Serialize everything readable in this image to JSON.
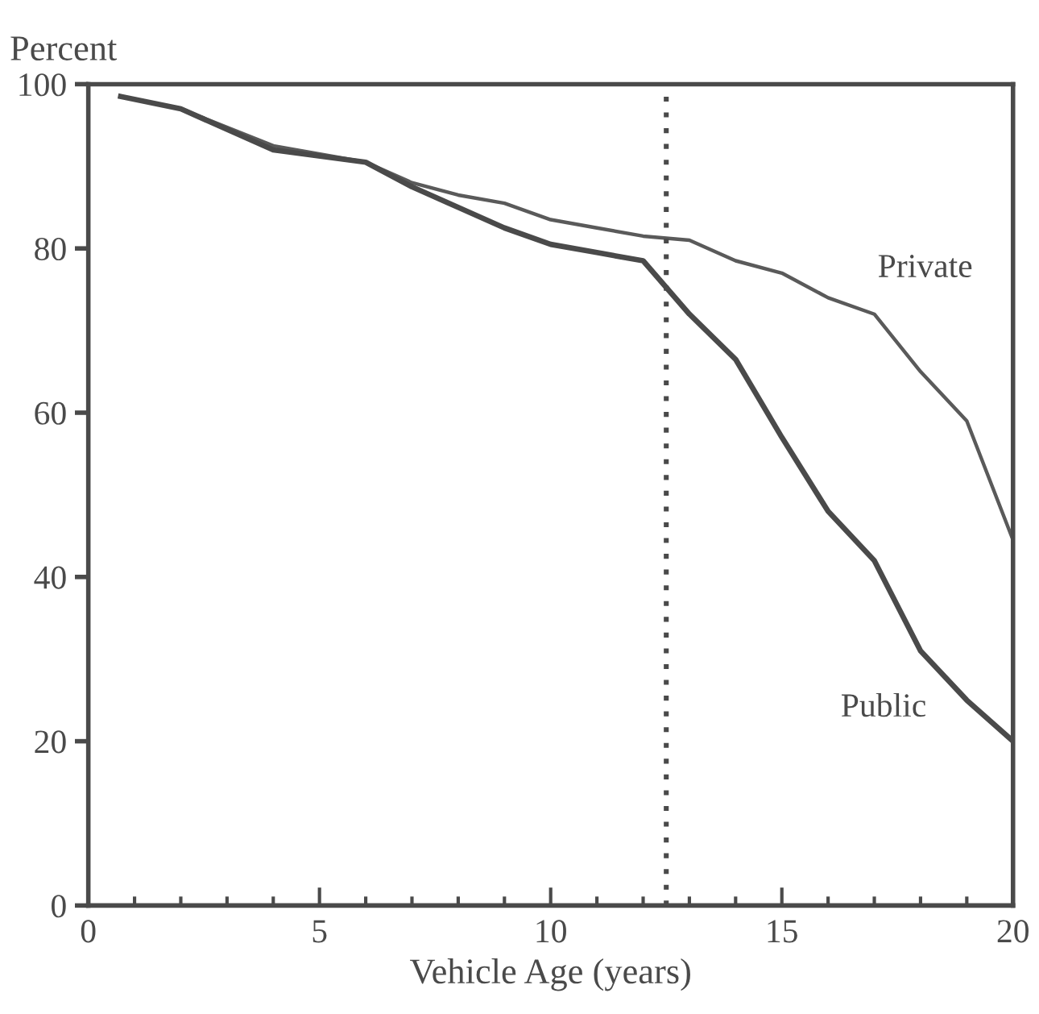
{
  "chart_data": {
    "type": "line",
    "xlabel": "Vehicle Age (years)",
    "ylabel": "Percent",
    "xlim": [
      0,
      20
    ],
    "ylim": [
      0,
      100
    ],
    "xticks": [
      0,
      {
        "value": 1,
        "label": null
      },
      {
        "value": 2,
        "label": null
      },
      {
        "value": 3,
        "label": null
      },
      {
        "value": 4,
        "label": null
      },
      5,
      {
        "value": 6,
        "label": null
      },
      {
        "value": 7,
        "label": null
      },
      {
        "value": 8,
        "label": null
      },
      {
        "value": 9,
        "label": null
      },
      10,
      {
        "value": 11,
        "label": null
      },
      {
        "value": 12,
        "label": null
      },
      {
        "value": 13,
        "label": null
      },
      {
        "value": 14,
        "label": null
      },
      15,
      {
        "value": 16,
        "label": null
      },
      {
        "value": 17,
        "label": null
      },
      {
        "value": 18,
        "label": null
      },
      {
        "value": 19,
        "label": null
      },
      20
    ],
    "yticks": [
      0,
      20,
      40,
      60,
      80,
      100
    ],
    "grid": false,
    "legend": false,
    "marker": "none",
    "line_style": "solid",
    "series": [
      {
        "name": "Private",
        "color": "#5a5a5a",
        "x": [
          0.7,
          2,
          4,
          6,
          7,
          8,
          9,
          10,
          11,
          12,
          13,
          14,
          15,
          16,
          17,
          18,
          19,
          20
        ],
        "values": [
          98.5,
          97,
          92.5,
          90.5,
          88,
          86.5,
          85.5,
          83.5,
          82.5,
          81.5,
          81,
          78.5,
          77,
          74,
          72,
          65,
          59,
          44.5
        ]
      },
      {
        "name": "Public",
        "color": "#4a4a4a",
        "x": [
          0.7,
          2,
          4,
          6,
          7,
          8,
          9,
          10,
          11,
          12,
          13,
          14,
          15,
          16,
          17,
          18,
          19,
          20
        ],
        "values": [
          98.5,
          97,
          92,
          90.5,
          87.5,
          85,
          82.5,
          80.5,
          79.5,
          78.5,
          72,
          66.5,
          57,
          48,
          42,
          31,
          25,
          20
        ]
      }
    ],
    "ref_lines": [
      {
        "axis": "x",
        "value": 12.5,
        "color": "#4a4a4a",
        "line_style": "dotted"
      }
    ]
  }
}
